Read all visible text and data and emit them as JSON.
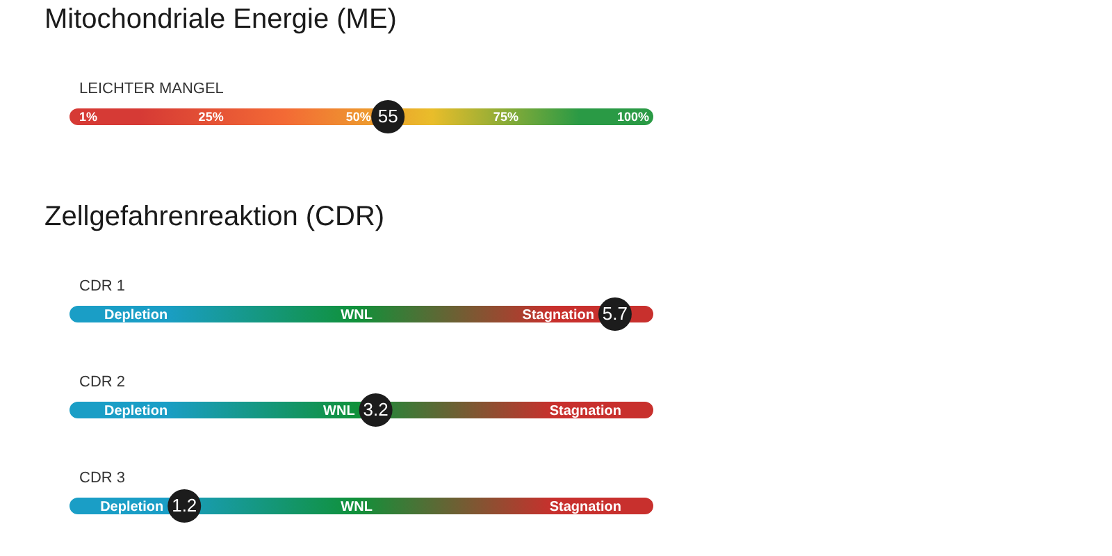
{
  "chart_data": [
    {
      "type": "scatter",
      "orientation": "horizontal",
      "marker": "circle",
      "title": "Mitochondriale Energie (ME)",
      "categories": [
        "LEICHTER MANGEL"
      ],
      "values": [
        55
      ],
      "color": "#1c1c1c",
      "data_labels": true,
      "xlim": [
        1,
        100
      ],
      "xticks": [
        {
          "value": 1,
          "label": "1%"
        },
        {
          "value": 25,
          "label": "25%"
        },
        {
          "value": 50,
          "label": "50%"
        },
        {
          "value": 75,
          "label": "75%"
        },
        {
          "value": 100,
          "label": "100%"
        }
      ],
      "bands": [
        {
          "axis": "x",
          "from": 1,
          "to": 25,
          "color": "#d63a35"
        },
        {
          "axis": "x",
          "from": 25,
          "to": 50,
          "color": "#f36a35"
        },
        {
          "axis": "x",
          "from": 50,
          "to": 75,
          "color": "#e9bd2a"
        },
        {
          "axis": "x",
          "from": 75,
          "to": 100,
          "color": "#2a9a45"
        }
      ]
    },
    {
      "type": "scatter",
      "orientation": "horizontal",
      "marker": "circle",
      "title": "Zellgefahrenreaktion (CDR)",
      "categories": [
        "CDR 1",
        "CDR 2",
        "CDR 3"
      ],
      "values": [
        5.7,
        3.2,
        1.2
      ],
      "color": "#1c1c1c",
      "data_labels": true,
      "bands": [
        {
          "axis": "x",
          "from": 0,
          "to": 2,
          "label": "Depletion",
          "color": "#1a9ec6"
        },
        {
          "axis": "x",
          "from": 2,
          "to": 4,
          "label": "WNL",
          "color": "#10913a"
        },
        {
          "axis": "x",
          "from": 4,
          "to": 6.1,
          "label": "Stagnation",
          "color": "#c8302d"
        },
        {
          "axis": "x",
          "from": 0,
          "to": 2,
          "label": "Depletion",
          "color": "#1a9ec6"
        },
        {
          "axis": "x",
          "from": 2,
          "to": 4,
          "label": "WNL",
          "color": "#10913a"
        },
        {
          "axis": "x",
          "from": 4,
          "to": 6.1,
          "label": "Stagnation",
          "color": "#c8302d"
        },
        {
          "axis": "x",
          "from": 0,
          "to": 2,
          "label": "Depletion",
          "color": "#1a9ec6"
        },
        {
          "axis": "x",
          "from": 2,
          "to": 4,
          "label": "WNL",
          "color": "#10913a"
        },
        {
          "axis": "x",
          "from": 4,
          "to": 6.1,
          "label": "Stagnation",
          "color": "#c8302d"
        }
      ]
    }
  ]
}
